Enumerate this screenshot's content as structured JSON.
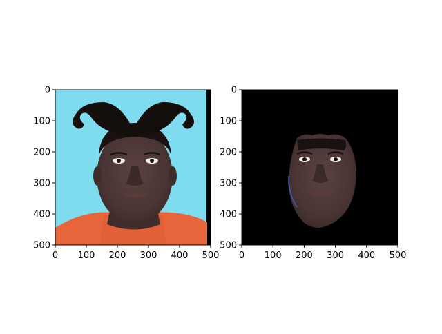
{
  "chart_data": [
    {
      "type": "image",
      "panel": "left",
      "content": "photo-with-mustache-overlay",
      "xlim": [
        0,
        500
      ],
      "ylim": [
        500,
        0
      ],
      "xticks": [
        0,
        100,
        200,
        300,
        400,
        500
      ],
      "yticks": [
        0,
        100,
        200,
        300,
        400,
        500
      ],
      "xtick_labels": [
        "0",
        "100",
        "200",
        "300",
        "400",
        "500"
      ],
      "ytick_labels": [
        "0",
        "100",
        "200",
        "300",
        "400",
        "500"
      ],
      "title": "",
      "xlabel": "",
      "ylabel": ""
    },
    {
      "type": "image",
      "panel": "right",
      "content": "segmented-face-on-black",
      "xlim": [
        0,
        500
      ],
      "ylim": [
        500,
        0
      ],
      "xticks": [
        0,
        100,
        200,
        300,
        400,
        500
      ],
      "yticks": [
        0,
        100,
        200,
        300,
        400,
        500
      ],
      "xtick_labels": [
        "0",
        "100",
        "200",
        "300",
        "400",
        "500"
      ],
      "ytick_labels": [
        "0",
        "100",
        "200",
        "300",
        "400",
        "500"
      ],
      "title": "",
      "xlabel": "",
      "ylabel": ""
    }
  ],
  "colors": {
    "left_background": "#7fdcef",
    "shirt": "#e8643a",
    "skin": "#4a3534",
    "mustache": "#140f0d",
    "right_background": "#000000"
  }
}
